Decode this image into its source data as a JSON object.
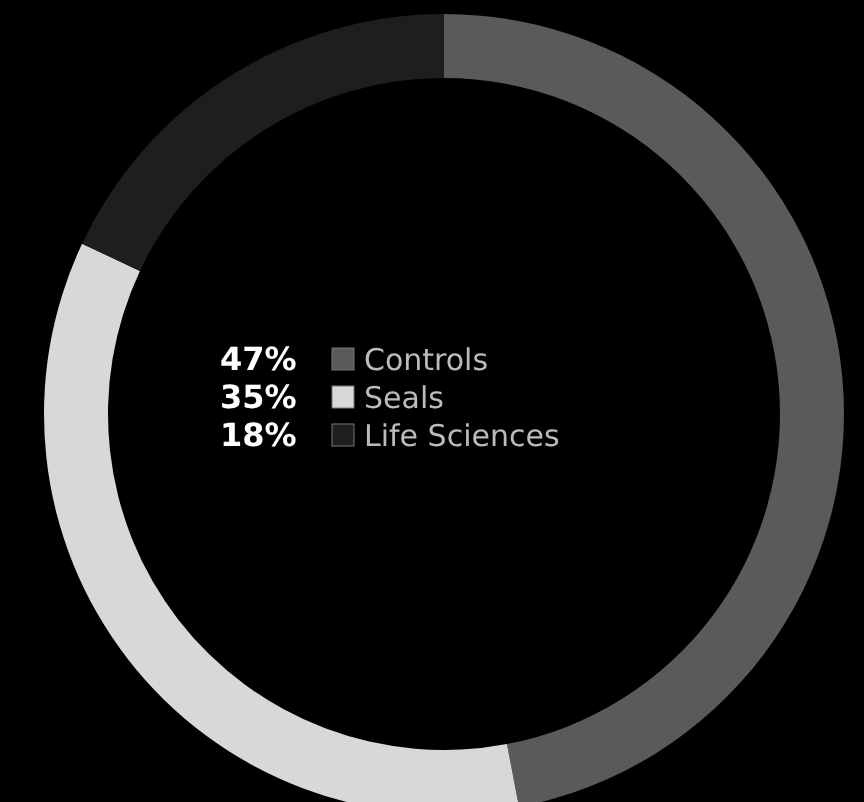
{
  "chart_data": {
    "type": "donut",
    "categories": [
      "Controls",
      "Seals",
      "Life Sciences"
    ],
    "values": [
      47,
      35,
      18
    ],
    "colors": [
      "#5a5a5a",
      "#d8d8d8",
      "#1e1e1e"
    ],
    "value_labels": [
      "47%",
      "35%",
      "18%"
    ],
    "legend": "center"
  }
}
